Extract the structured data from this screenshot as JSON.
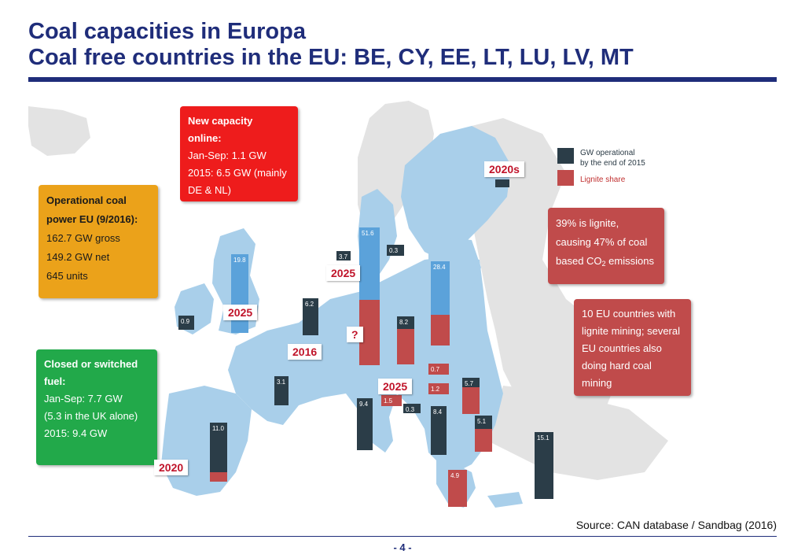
{
  "slide": {
    "title_line1": "Coal capacities in Europa",
    "title_line2": "Coal free countries in the EU: BE, CY, EE, LT, LU, LV, MT",
    "source": "Source: CAN database / Sandbag (2016)",
    "page_number": "- 4 -"
  },
  "colors": {
    "title": "#1f2d7a",
    "gw_operational": "#2b3d48",
    "lignite_share": "#c04b4b",
    "blue_bar": "#4a9ad6",
    "map_sea": "#ffffff",
    "map_eu": "#a9cfea",
    "map_non_eu": "#e3e3e3"
  },
  "boxes": {
    "new_capacity": {
      "line1": "New capacity",
      "line2": "online:",
      "line3": "Jan-Sep: 1.1 GW",
      "line4": "2015: 6.5 GW (mainly",
      "line5": "DE & NL)"
    },
    "operational": {
      "line1": "Operational coal",
      "line2": "power EU (9/2016):",
      "line3": "162.7 GW gross",
      "line4": "149.2 GW net",
      "line5": "645 units"
    },
    "closed": {
      "line1": "Closed or switched",
      "line2": "fuel:",
      "line3": "Jan-Sep: 7.7 GW",
      "line4": "(5.3 in the UK alone)",
      "line5": "2015: 9.4 GW"
    },
    "lignite": {
      "line1": "39% is lignite,",
      "line2": "causing 47% of coal",
      "line3": "based CO",
      "line3_sub": "2",
      "line3_end": " emissions"
    },
    "mining": {
      "line1": "10 EU countries with",
      "line2": "lignite mining; several",
      "line3": "EU countries also",
      "line4": "doing hard coal",
      "line5": "mining"
    }
  },
  "legend": {
    "gw_line1": "GW operational",
    "gw_line2": "by the end of 2015",
    "lignite": "Lignite share"
  },
  "phaseout_labels": [
    "2020s",
    "2025",
    "2025",
    "2016",
    "?",
    "2025",
    "2020"
  ],
  "bar_values": [
    "19.8",
    "0.9",
    "6.2",
    "3.7",
    "51.6",
    "0.3",
    "28.4",
    "8.2",
    "3.1",
    "11.0",
    "9.4",
    "1.5",
    "0.3",
    "0.7",
    "1.2",
    "8.4",
    "5.7",
    "5.1",
    "15.1",
    "4.9"
  ]
}
